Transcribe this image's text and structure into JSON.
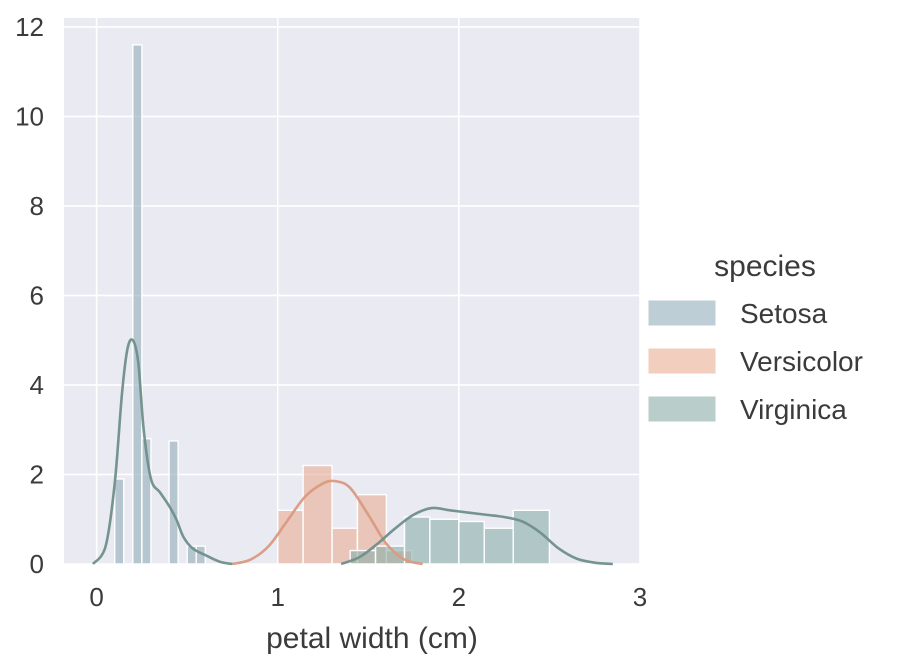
{
  "chart_data": {
    "type": "histogram",
    "title": "",
    "xlabel": "petal width (cm)",
    "ylabel": "",
    "xlim": [
      -0.18,
      3.0
    ],
    "ylim": [
      0,
      12.2
    ],
    "x_ticks": [
      0,
      1,
      2,
      3
    ],
    "y_ticks": [
      0,
      2,
      4,
      6,
      8,
      10,
      12
    ],
    "grid": true,
    "legend": {
      "title": "species",
      "placement": "right"
    },
    "series": [
      {
        "name": "Setosa",
        "color": "#93aebb",
        "bins": [
          {
            "x0": 0.1,
            "x1": 0.15,
            "count": 1.9
          },
          {
            "x0": 0.2,
            "x1": 0.25,
            "count": 11.6
          },
          {
            "x0": 0.25,
            "x1": 0.3,
            "count": 2.8
          },
          {
            "x0": 0.4,
            "x1": 0.45,
            "count": 2.75
          },
          {
            "x0": 0.5,
            "x1": 0.55,
            "count": 0.4
          },
          {
            "x0": 0.55,
            "x1": 0.6,
            "count": 0.4
          }
        ],
        "kde": {
          "x": [
            -0.02,
            0.05,
            0.1,
            0.14,
            0.17,
            0.2,
            0.23,
            0.26,
            0.3,
            0.35,
            0.4,
            0.44,
            0.48,
            0.53,
            0.6,
            0.68,
            0.75
          ],
          "y": [
            0.0,
            0.4,
            1.8,
            3.8,
            4.8,
            5.0,
            4.5,
            3.0,
            1.9,
            1.6,
            1.3,
            1.0,
            0.6,
            0.35,
            0.2,
            0.05,
            0.0
          ]
        }
      },
      {
        "name": "Versicolor",
        "color": "#e8ad93",
        "bins": [
          {
            "x0": 1.0,
            "x1": 1.14,
            "count": 1.2
          },
          {
            "x0": 1.14,
            "x1": 1.3,
            "count": 2.2
          },
          {
            "x0": 1.3,
            "x1": 1.44,
            "count": 0.8
          },
          {
            "x0": 1.44,
            "x1": 1.6,
            "count": 1.55
          },
          {
            "x0": 1.6,
            "x1": 1.74,
            "count": 0.3
          }
        ],
        "kde": {
          "x": [
            0.75,
            0.85,
            0.95,
            1.05,
            1.15,
            1.25,
            1.32,
            1.4,
            1.5,
            1.6,
            1.7,
            1.8
          ],
          "y": [
            0.0,
            0.1,
            0.4,
            0.95,
            1.5,
            1.8,
            1.85,
            1.7,
            1.1,
            0.45,
            0.1,
            0.0
          ]
        }
      },
      {
        "name": "Virginica",
        "color": "#8aada8",
        "bins": [
          {
            "x0": 1.4,
            "x1": 1.54,
            "count": 0.3
          },
          {
            "x0": 1.54,
            "x1": 1.7,
            "count": 0.4
          },
          {
            "x0": 1.7,
            "x1": 1.84,
            "count": 1.05
          },
          {
            "x0": 1.84,
            "x1": 2.0,
            "count": 1.0
          },
          {
            "x0": 2.0,
            "x1": 2.14,
            "count": 0.95
          },
          {
            "x0": 2.14,
            "x1": 2.3,
            "count": 0.8
          },
          {
            "x0": 2.3,
            "x1": 2.5,
            "count": 1.2
          }
        ],
        "kde": {
          "x": [
            1.35,
            1.45,
            1.55,
            1.65,
            1.75,
            1.85,
            1.95,
            2.05,
            2.15,
            2.25,
            2.35,
            2.45,
            2.55,
            2.65,
            2.75,
            2.85
          ],
          "y": [
            0.0,
            0.15,
            0.45,
            0.8,
            1.1,
            1.25,
            1.2,
            1.15,
            1.1,
            1.05,
            0.95,
            0.7,
            0.35,
            0.12,
            0.03,
            0.0
          ]
        }
      }
    ]
  }
}
